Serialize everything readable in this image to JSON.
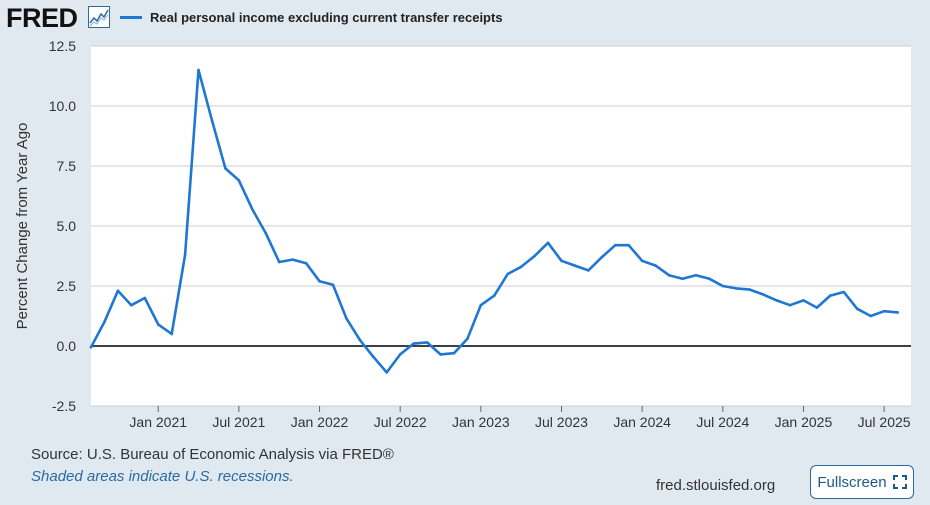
{
  "header": {
    "logo_text": "FRED",
    "legend_label": "Real personal income excluding current transfer receipts"
  },
  "footer": {
    "source": "Source: U.S. Bureau of Economic Analysis via FRED®",
    "recession_note": "Shaded areas indicate U.S. recessions.",
    "site": "fred.stlouisfed.org",
    "fullscreen_label": "Fullscreen"
  },
  "colors": {
    "series": "#1f77d4",
    "background": "#e1e9f0",
    "plot_bg": "#ffffff",
    "grid": "#c9ced3",
    "zero_line": "#000000"
  },
  "icons": [
    "fred-graph-icon",
    "fullscreen-icon"
  ],
  "chart_data": {
    "type": "line",
    "ylabel": "Percent Change from Year Ago",
    "xlabel": "",
    "ylim": [
      -2.5,
      12.5
    ],
    "y_ticks": [
      -2.5,
      0.0,
      2.5,
      5.0,
      7.5,
      10.0,
      12.5
    ],
    "y_tick_labels": [
      "-2.5",
      "0.0",
      "2.5",
      "5.0",
      "7.5",
      "10.0",
      "12.5"
    ],
    "x_start": "2020-08",
    "x_end": "2025-09",
    "x_ticks": [
      {
        "date": "2021-01",
        "label": "Jan 2021"
      },
      {
        "date": "2021-07",
        "label": "Jul 2021"
      },
      {
        "date": "2022-01",
        "label": "Jan 2022"
      },
      {
        "date": "2022-07",
        "label": "Jul 2022"
      },
      {
        "date": "2023-01",
        "label": "Jan 2023"
      },
      {
        "date": "2023-07",
        "label": "Jul 2023"
      },
      {
        "date": "2024-01",
        "label": "Jan 2024"
      },
      {
        "date": "2024-07",
        "label": "Jul 2024"
      },
      {
        "date": "2025-01",
        "label": "Jan 2025"
      },
      {
        "date": "2025-07",
        "label": "Jul 2025"
      }
    ],
    "grid": true,
    "zero_line": true,
    "series": [
      {
        "name": "Real personal income excluding current transfer receipts",
        "x": [
          "2020-08",
          "2020-09",
          "2020-10",
          "2020-11",
          "2020-12",
          "2021-01",
          "2021-02",
          "2021-03",
          "2021-04",
          "2021-05",
          "2021-06",
          "2021-07",
          "2021-08",
          "2021-09",
          "2021-10",
          "2021-11",
          "2021-12",
          "2022-01",
          "2022-02",
          "2022-03",
          "2022-04",
          "2022-05",
          "2022-06",
          "2022-07",
          "2022-08",
          "2022-09",
          "2022-10",
          "2022-11",
          "2022-12",
          "2023-01",
          "2023-02",
          "2023-03",
          "2023-04",
          "2023-05",
          "2023-06",
          "2023-07",
          "2023-08",
          "2023-09",
          "2023-10",
          "2023-11",
          "2023-12",
          "2024-01",
          "2024-02",
          "2024-03",
          "2024-04",
          "2024-05",
          "2024-06",
          "2024-07",
          "2024-08",
          "2024-09",
          "2024-10",
          "2024-11",
          "2024-12",
          "2025-01",
          "2025-02",
          "2025-03",
          "2025-04",
          "2025-05",
          "2025-06",
          "2025-07",
          "2025-08"
        ],
        "values": [
          -0.05,
          1.0,
          2.3,
          1.7,
          2.0,
          0.9,
          0.5,
          3.8,
          11.5,
          9.4,
          7.4,
          6.9,
          5.7,
          4.7,
          3.5,
          3.6,
          3.45,
          2.7,
          2.55,
          1.15,
          0.25,
          -0.45,
          -1.1,
          -0.35,
          0.1,
          0.15,
          -0.35,
          -0.3,
          0.3,
          1.7,
          2.1,
          3.0,
          3.3,
          3.75,
          4.3,
          3.55,
          3.35,
          3.15,
          3.7,
          4.2,
          4.2,
          3.55,
          3.35,
          2.95,
          2.8,
          2.95,
          2.8,
          2.5,
          2.4,
          2.35,
          2.15,
          1.9,
          1.7,
          1.9,
          1.6,
          2.1,
          2.25,
          1.55,
          1.25,
          1.45,
          1.4
        ]
      }
    ]
  }
}
